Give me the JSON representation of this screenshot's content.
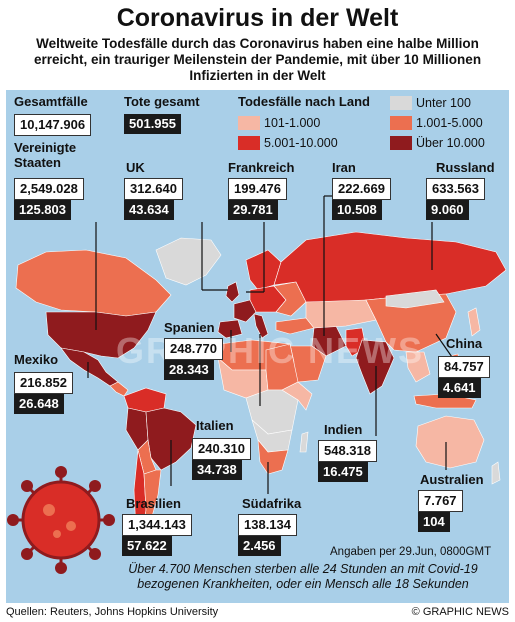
{
  "title": "Coronavirus in der Welt",
  "subtitle": "Weltweite Todesfälle durch das Coronavirus haben eine halbe Million erreicht, ein trauriger Meilenstein der Pandemie, mit über 10 Millionen Infizierten in der Welt",
  "totals": {
    "cases_label": "Gesamtfälle",
    "cases_value": "10,147.906",
    "deaths_label": "Tote gesamt",
    "deaths_value": "501.955"
  },
  "legend": {
    "title": "Todesfälle nach Land",
    "items": [
      {
        "label": "Unter 100",
        "color": "#d9d9d9"
      },
      {
        "label": "101-1.000",
        "color": "#f6b7a4"
      },
      {
        "label": "1.001-5.000",
        "color": "#ec6f50"
      },
      {
        "label": "5.001-10.000",
        "color": "#d92d27"
      },
      {
        "label": "Über 10.000",
        "color": "#8f1b1e"
      }
    ]
  },
  "countries": [
    {
      "key": "usa",
      "name": "Vereinigte Staaten",
      "cases": "2,549.028",
      "deaths": "125.803"
    },
    {
      "key": "uk",
      "name": "UK",
      "cases": "312.640",
      "deaths": "43.634"
    },
    {
      "key": "france",
      "name": "Frankreich",
      "cases": "199.476",
      "deaths": "29.781"
    },
    {
      "key": "iran",
      "name": "Iran",
      "cases": "222.669",
      "deaths": "10.508"
    },
    {
      "key": "russia",
      "name": "Russland",
      "cases": "633.563",
      "deaths": "9.060"
    },
    {
      "key": "spain",
      "name": "Spanien",
      "cases": "248.770",
      "deaths": "28.343"
    },
    {
      "key": "mexico",
      "name": "Mexiko",
      "cases": "216.852",
      "deaths": "26.648"
    },
    {
      "key": "china",
      "name": "China",
      "cases": "84.757",
      "deaths": "4.641"
    },
    {
      "key": "italy",
      "name": "Italien",
      "cases": "240.310",
      "deaths": "34.738"
    },
    {
      "key": "india",
      "name": "Indien",
      "cases": "548.318",
      "deaths": "16.475"
    },
    {
      "key": "australia",
      "name": "Australien",
      "cases": "7.767",
      "deaths": "104"
    },
    {
      "key": "brazil",
      "name": "Brasilien",
      "cases": "1,344.143",
      "deaths": "57.622"
    },
    {
      "key": "southafrica",
      "name": "Südafrika",
      "cases": "138.134",
      "deaths": "2.456"
    }
  ],
  "date_note": "Angaben per 29.Jun, 0800GMT",
  "footnote": "Über 4.700 Menschen sterben alle 24 Stunden an mit Covid-19 bezogenen Krankheiten, oder ein Mensch alle 18 Sekunden",
  "sources": "Quellen: Reuters, Johns Hopkins University",
  "credit": "© GRAPHIC NEWS",
  "watermark": "GRAPHIC NEWS"
}
